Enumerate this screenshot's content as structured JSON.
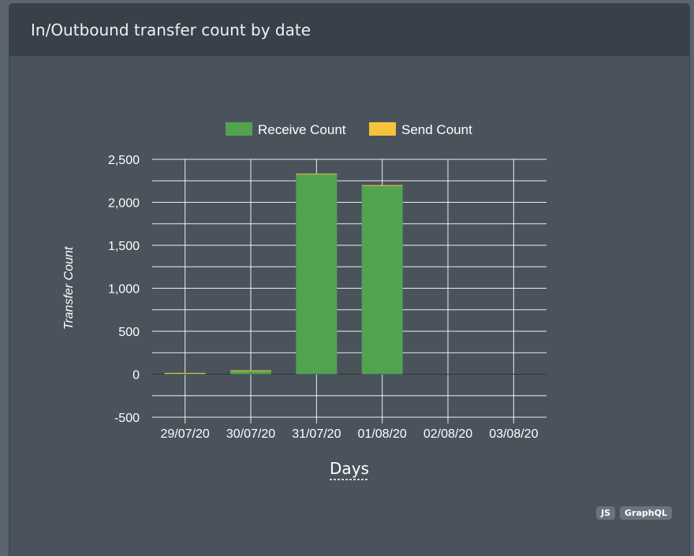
{
  "panel": {
    "title": "In/Outbound transfer count by date",
    "badges": [
      "JS",
      "GraphQL"
    ]
  },
  "chart_data": {
    "type": "bar",
    "stacked": true,
    "categories": [
      "29/07/20",
      "30/07/20",
      "31/07/20",
      "01/08/20",
      "02/08/20",
      "03/08/20"
    ],
    "series": [
      {
        "name": "Receive Count",
        "color": "#52a350",
        "values": [
          12,
          40,
          2325,
          2190,
          0,
          0
        ]
      },
      {
        "name": "Send Count",
        "color": "#f7c33b",
        "values": [
          3,
          5,
          8,
          10,
          0,
          0
        ]
      }
    ],
    "xlabel": "Days",
    "ylabel": "Transfer Count",
    "ylim": [
      -500,
      2500
    ],
    "yticks": [
      2500,
      2000,
      1500,
      1000,
      500,
      0,
      -500
    ],
    "ytick_labels": [
      "2,500",
      "2,000",
      "1,500",
      "1,000",
      "500",
      "0",
      "-500"
    ],
    "grid": true,
    "legend": "top-center"
  }
}
